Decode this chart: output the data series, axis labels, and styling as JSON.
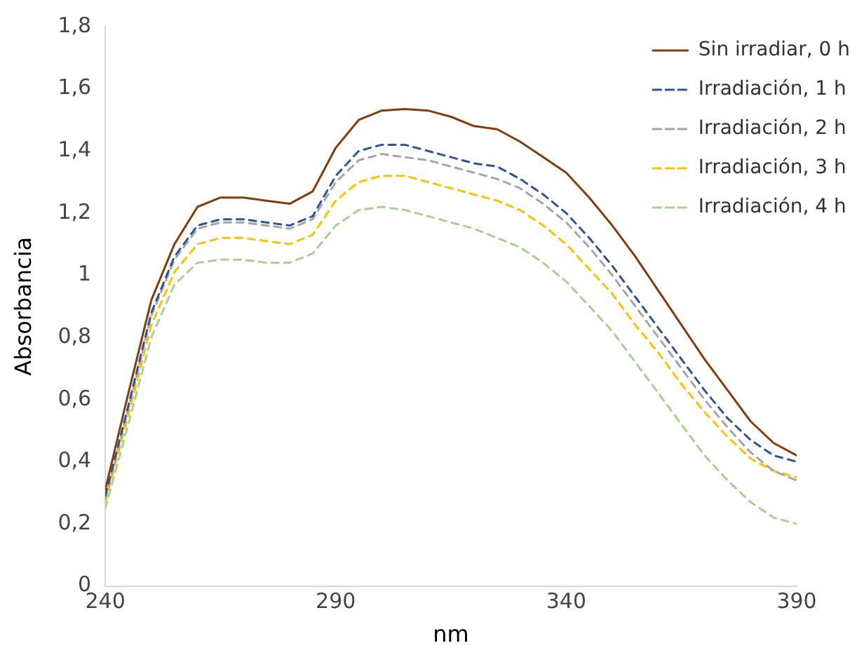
{
  "chart_data": {
    "type": "line",
    "xlabel": "nm",
    "ylabel": "Absorbancia",
    "x": [
      240,
      245,
      250,
      255,
      260,
      265,
      270,
      275,
      280,
      285,
      290,
      295,
      300,
      305,
      310,
      315,
      320,
      325,
      330,
      335,
      340,
      345,
      350,
      355,
      360,
      365,
      370,
      375,
      380,
      385,
      390
    ],
    "xlim": [
      240,
      390
    ],
    "xticks": [
      240,
      290,
      340,
      390
    ],
    "ylim": [
      0,
      1.8
    ],
    "yticks": [
      0,
      {
        "value": 0.2,
        "label": "0,2"
      },
      {
        "value": 0.4,
        "label": "0,4"
      },
      {
        "value": 0.6,
        "label": "0,6"
      },
      {
        "value": 0.8,
        "label": "0,8"
      },
      1,
      {
        "value": 1.2,
        "label": "1,2"
      },
      {
        "value": 1.4,
        "label": "1,4"
      },
      {
        "value": 1.6,
        "label": "1,6"
      },
      {
        "value": 1.8,
        "label": "1,8"
      }
    ],
    "grid": false,
    "legend": "top right",
    "marker": "none",
    "series": [
      {
        "name": "Sin irradiar, 0 h",
        "color": "#843c0c",
        "line_style": "solid",
        "values": [
          0.31,
          0.62,
          0.92,
          1.1,
          1.22,
          1.25,
          1.25,
          1.24,
          1.23,
          1.27,
          1.41,
          1.5,
          1.53,
          1.535,
          1.53,
          1.51,
          1.48,
          1.47,
          1.43,
          1.38,
          1.33,
          1.25,
          1.16,
          1.06,
          0.95,
          0.84,
          0.73,
          0.63,
          0.53,
          0.46,
          0.42
        ]
      },
      {
        "name": "Irradiación, 1 h",
        "color": "#2f5597",
        "line_style": "dashed",
        "values": [
          0.29,
          0.58,
          0.88,
          1.06,
          1.16,
          1.18,
          1.18,
          1.17,
          1.16,
          1.19,
          1.32,
          1.4,
          1.42,
          1.42,
          1.4,
          1.38,
          1.36,
          1.35,
          1.31,
          1.26,
          1.2,
          1.12,
          1.03,
          0.93,
          0.83,
          0.73,
          0.63,
          0.54,
          0.47,
          0.42,
          0.4
        ]
      },
      {
        "name": "Irradiación, 2 h",
        "color": "#a5a5a5",
        "line_style": "dashed",
        "values": [
          0.28,
          0.57,
          0.87,
          1.05,
          1.15,
          1.17,
          1.17,
          1.16,
          1.15,
          1.18,
          1.3,
          1.37,
          1.39,
          1.38,
          1.37,
          1.35,
          1.33,
          1.31,
          1.28,
          1.23,
          1.17,
          1.09,
          1.0,
          0.9,
          0.8,
          0.7,
          0.6,
          0.51,
          0.43,
          0.37,
          0.34
        ]
      },
      {
        "name": "Irradiación, 3 h",
        "color": "#ffc000",
        "line_style": "dashed",
        "values": [
          0.27,
          0.55,
          0.84,
          1.01,
          1.1,
          1.12,
          1.12,
          1.11,
          1.1,
          1.13,
          1.24,
          1.3,
          1.32,
          1.32,
          1.3,
          1.28,
          1.26,
          1.24,
          1.21,
          1.16,
          1.1,
          1.02,
          0.94,
          0.84,
          0.75,
          0.65,
          0.56,
          0.48,
          0.41,
          0.37,
          0.35
        ]
      },
      {
        "name": "Irradiación, 4 h",
        "color": "#a9d18e",
        "line_style": "dashed",
        "values": [
          0.25,
          0.52,
          0.8,
          0.97,
          1.04,
          1.05,
          1.05,
          1.04,
          1.04,
          1.07,
          1.16,
          1.21,
          1.22,
          1.21,
          1.19,
          1.17,
          1.15,
          1.12,
          1.09,
          1.04,
          0.98,
          0.9,
          0.82,
          0.72,
          0.62,
          0.52,
          0.42,
          0.34,
          0.27,
          0.22,
          0.2
        ]
      }
    ]
  }
}
